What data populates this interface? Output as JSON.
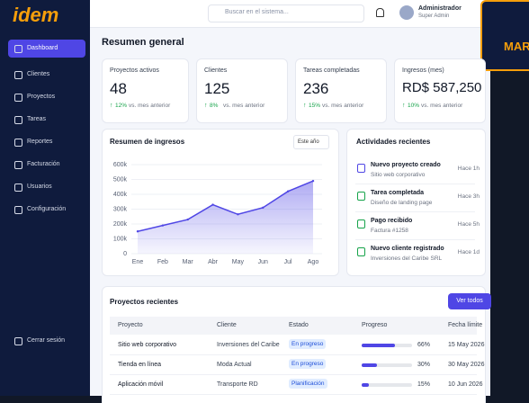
{
  "brand": {
    "logo": "idem"
  },
  "search_placeholder": "Buscar en el sistema...",
  "user": {
    "name": "Administrador",
    "role": "Super Admin"
  },
  "sidebar": {
    "items": [
      "Dashboard",
      "Clientes",
      "Proyectos",
      "Tareas",
      "Reportes",
      "Facturación",
      "Usuarios",
      "Configuración"
    ],
    "logout": "Cerrar sesión"
  },
  "side_promo": "MAR",
  "page_title": "Resumen general",
  "stats": [
    {
      "label": "Proyectos activos",
      "value": "48",
      "change": "12%",
      "note": "vs. mes anterior"
    },
    {
      "label": "Clientes",
      "value": "125",
      "change": "8%",
      "note": "vs. mes anterior"
    },
    {
      "label": "Tareas completadas",
      "value": "236",
      "change": "15%",
      "note": "vs. mes anterior"
    },
    {
      "label": "Ingresos (mes)",
      "value": "RD$ 587,250",
      "change": "10%",
      "note": "vs. mes anterior"
    }
  ],
  "chart_data": {
    "type": "area",
    "title": "Resumen de ingresos",
    "filter": "Este año",
    "categories": [
      "Ene",
      "Feb",
      "Mar",
      "Abr",
      "May",
      "Jun",
      "Jul",
      "Ago"
    ],
    "values": [
      150000,
      190000,
      230000,
      330000,
      265000,
      310000,
      420000,
      490000
    ],
    "color": "#4f46e5",
    "grid": true,
    "ylim": [
      0,
      600000
    ],
    "yticks": [
      {
        "value": 0,
        "label": "0"
      },
      {
        "value": 100000,
        "label": "100k"
      },
      {
        "value": 200000,
        "label": "200k"
      },
      {
        "value": 300000,
        "label": "300k"
      },
      {
        "value": 400000,
        "label": "400k"
      },
      {
        "value": 500000,
        "label": "500k"
      },
      {
        "value": 600000,
        "label": "600k"
      }
    ]
  },
  "activities": {
    "title": "Actividades recientes",
    "items": [
      {
        "title": "Nuevo proyecto creado",
        "subtitle": "Sitio web corporativo",
        "time": "Hace 1h"
      },
      {
        "title": "Tarea completada",
        "subtitle": "Diseño de landing page",
        "time": "Hace 3h"
      },
      {
        "title": "Pago recibido",
        "subtitle": "Factura #1258",
        "time": "Hace 5h"
      },
      {
        "title": "Nuevo cliente registrado",
        "subtitle": "Inversiones del Caribe SRL",
        "time": "Hace 1d"
      }
    ]
  },
  "projects": {
    "title": "Proyectos recientes",
    "button": "Ver todos",
    "columns": [
      "Proyecto",
      "Cliente",
      "Estado",
      "Progreso",
      "Fecha límite"
    ],
    "rows": [
      {
        "name": "Sitio web corporativo",
        "client": "Inversiones del Caribe",
        "status": "En progreso",
        "progress": 66,
        "progress_label": "66%",
        "date": "15 May 2026"
      },
      {
        "name": "Tienda en línea",
        "client": "Moda Actual",
        "status": "En progreso",
        "progress": 30,
        "progress_label": "30%",
        "date": "30 May 2026"
      },
      {
        "name": "Aplicación móvil",
        "client": "Transporte RD",
        "status": "Planificación",
        "progress": 15,
        "progress_label": "15%",
        "date": "10 Jun 2026"
      }
    ]
  }
}
